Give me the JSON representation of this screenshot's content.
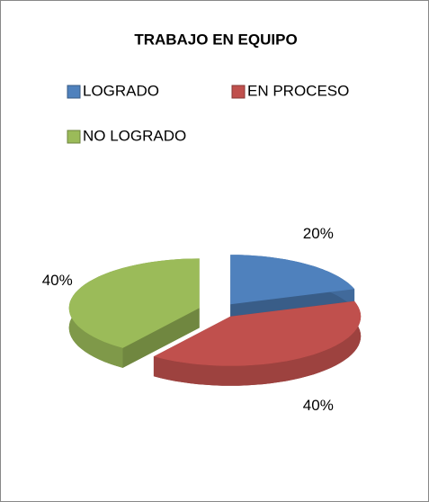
{
  "chart_data": {
    "type": "pie",
    "title": "TRABAJO EN EQUIPO",
    "categories": [
      "LOGRADO",
      "EN PROCESO",
      "NO LOGRADO"
    ],
    "values": [
      20,
      40,
      40
    ],
    "value_labels": [
      "20%",
      "40%",
      "40%"
    ],
    "colors": [
      "#4f81bd",
      "#c0504d",
      "#9bbb59"
    ],
    "legend": "top"
  }
}
